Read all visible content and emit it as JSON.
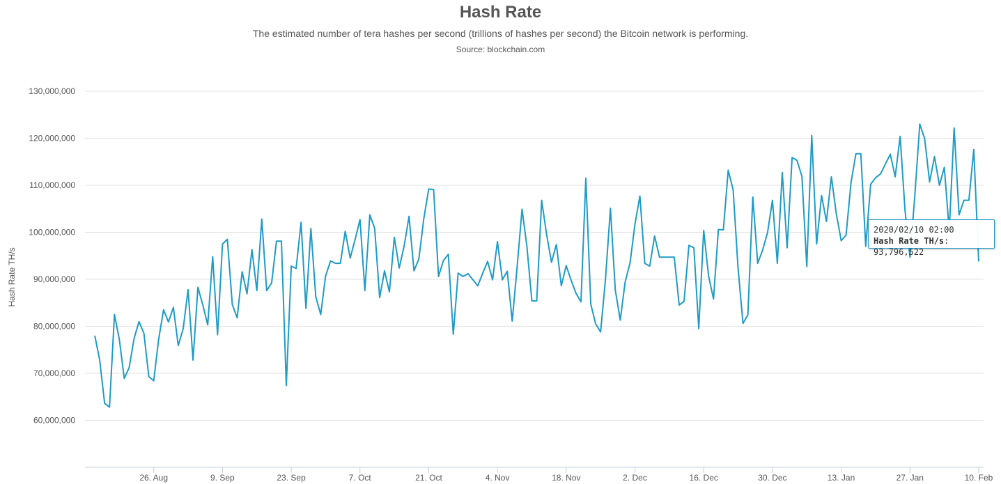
{
  "header": {
    "title": "Hash Rate",
    "subtitle": "The estimated number of tera hashes per second (trillions of hashes per second) the Bitcoin network is performing.",
    "source": "Source: blockchain.com"
  },
  "tooltip": {
    "date": "2020/02/10 02:00",
    "series_label": "Hash Rate TH/s",
    "value": "93,796,522"
  },
  "colors": {
    "line": "#1e9bc6",
    "grid": "#e0e0e0",
    "axis": "#c0d0e0"
  },
  "chart_data": {
    "type": "line",
    "title": "Hash Rate",
    "ylabel": "Hash Rate TH/s",
    "xlabel": "",
    "ylim": [
      50000000,
      130000000
    ],
    "xlim": [
      "2019-08-12",
      "2020-02-11"
    ],
    "y_ticks": [
      "60,000,000",
      "70,000,000",
      "80,000,000",
      "90,000,000",
      "100,000,000",
      "110,000,000",
      "120,000,000",
      "130,000,000"
    ],
    "x_ticks": [
      {
        "label": "26. Aug",
        "date": "2019-08-26"
      },
      {
        "label": "9. Sep",
        "date": "2019-09-09"
      },
      {
        "label": "23. Sep",
        "date": "2019-09-23"
      },
      {
        "label": "7. Oct",
        "date": "2019-10-07"
      },
      {
        "label": "21. Oct",
        "date": "2019-10-21"
      },
      {
        "label": "4. Nov",
        "date": "2019-11-04"
      },
      {
        "label": "18. Nov",
        "date": "2019-11-18"
      },
      {
        "label": "2. Dec",
        "date": "2019-12-02"
      },
      {
        "label": "16. Dec",
        "date": "2019-12-16"
      },
      {
        "label": "30. Dec",
        "date": "2019-12-30"
      },
      {
        "label": "13. Jan",
        "date": "2020-01-13"
      },
      {
        "label": "27. Jan",
        "date": "2020-01-27"
      },
      {
        "label": "10. Feb",
        "date": "2020-02-10"
      }
    ],
    "series": [
      {
        "start_date": "2019-08-14",
        "values": [
          78000000,
          72800000,
          63600000,
          62800000,
          82500000,
          77200000,
          68900000,
          71200000,
          77400000,
          81000000,
          78500000,
          69300000,
          68400000,
          77200000,
          83500000,
          80900000,
          84000000,
          75900000,
          79500000,
          87800000,
          72800000,
          88300000,
          84500000,
          80300000,
          94800000,
          78200000,
          97500000,
          98500000,
          84600000,
          81800000,
          91600000,
          86900000,
          96300000,
          87600000,
          102800000,
          87600000,
          89200000,
          98100000,
          98100000,
          67400000,
          92800000,
          92300000,
          102100000,
          83800000,
          100800000,
          86300000,
          82500000,
          90700000,
          93900000,
          93400000,
          93400000,
          100200000,
          94500000,
          98400000,
          102700000,
          87600000,
          103700000,
          100800000,
          86100000,
          91800000,
          87300000,
          98900000,
          92400000,
          97100000,
          103400000,
          91800000,
          94300000,
          102900000,
          109200000,
          109100000,
          90600000,
          94000000,
          95300000,
          78300000,
          91300000,
          90600000,
          91200000,
          89900000,
          88600000,
          91300000,
          93800000,
          89900000,
          98000000,
          89900000,
          91700000,
          81100000,
          92500000,
          104900000,
          97000000,
          85400000,
          85400000,
          106800000,
          99600000,
          93600000,
          97400000,
          88600000,
          92900000,
          89800000,
          87000000,
          85200000,
          111500000,
          84700000,
          80500000,
          78800000,
          90000000,
          105100000,
          87700000,
          81300000,
          89400000,
          93500000,
          101700000,
          107700000,
          93400000,
          92800000,
          99200000,
          94700000,
          94700000,
          94700000,
          94700000,
          84500000,
          85300000,
          97200000,
          96700000,
          79500000,
          100400000,
          90700000,
          85800000,
          100600000,
          100500000,
          113200000,
          109000000,
          92400000,
          80600000,
          82400000,
          107500000,
          93400000,
          96200000,
          99900000,
          106800000,
          93400000,
          112700000,
          96700000,
          115900000,
          115300000,
          111900000,
          92700000,
          120600000,
          97500000,
          107800000,
          102300000,
          111800000,
          104000000,
          98200000,
          99400000,
          110600000,
          116700000,
          116700000,
          97000000,
          110200000,
          111600000,
          112400000,
          114500000,
          116600000,
          111800000,
          120400000,
          104700000,
          94700000,
          107800000,
          123000000,
          119900000,
          110700000,
          116100000,
          110000000,
          113800000,
          100400000,
          122200000,
          103700000,
          106800000,
          106800000,
          117600000,
          93800000
        ]
      }
    ]
  }
}
